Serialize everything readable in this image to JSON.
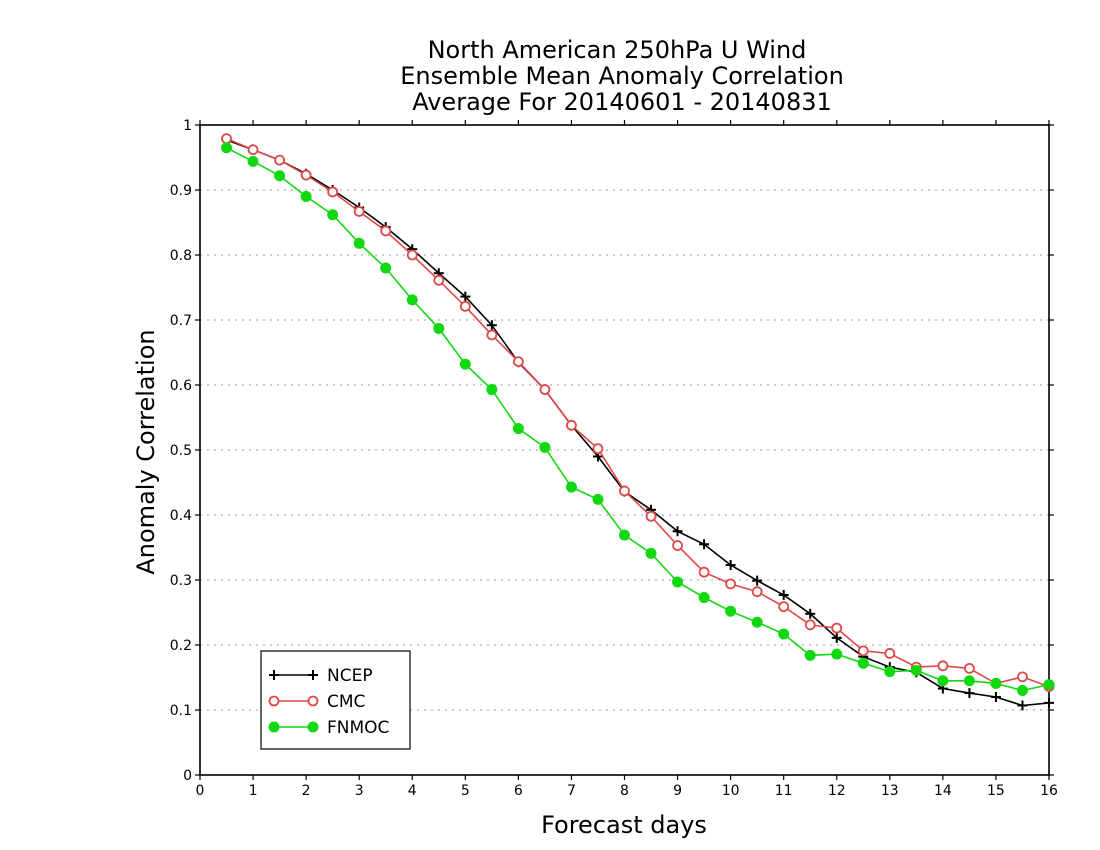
{
  "chart_data": {
    "type": "line",
    "title": [
      "North American 250hPa U Wind",
      "Ensemble Mean Anomaly Correlation",
      "Average For 20140601 - 20140831"
    ],
    "xlabel": "Forecast days",
    "ylabel": "Anomaly Correlation",
    "xlim": [
      0,
      16
    ],
    "ylim": [
      0,
      1
    ],
    "xticks": [
      "0",
      "1",
      "2",
      "3",
      "4",
      "5",
      "6",
      "7",
      "8",
      "9",
      "10",
      "11",
      "12",
      "13",
      "14",
      "15",
      "16"
    ],
    "yticks": [
      "0",
      "0.1",
      "0.2",
      "0.3",
      "0.4",
      "0.5",
      "0.6",
      "0.7",
      "0.8",
      "0.9",
      "1"
    ],
    "grid": "horizontal dotted",
    "legend_position": "bottom-left",
    "x": [
      0.5,
      1,
      1.5,
      2,
      2.5,
      3,
      3.5,
      4,
      4.5,
      5,
      5.5,
      6,
      6.5,
      7,
      7.5,
      8,
      8.5,
      9,
      9.5,
      10,
      10.5,
      11,
      11.5,
      12,
      12.5,
      13,
      13.5,
      14,
      14.5,
      15,
      15.5,
      16
    ],
    "series": [
      {
        "name": "NCEP",
        "color": "#000000",
        "marker": "plus",
        "values": [
          0.977,
          0.962,
          0.946,
          0.925,
          0.9,
          0.873,
          0.843,
          0.809,
          0.772,
          0.736,
          0.692,
          0.635,
          0.593,
          0.538,
          0.49,
          0.436,
          0.408,
          0.375,
          0.355,
          0.323,
          0.299,
          0.277,
          0.248,
          0.211,
          0.182,
          0.166,
          0.158,
          0.133,
          0.126,
          0.12,
          0.107,
          0.111
        ]
      },
      {
        "name": "CMC",
        "color": "#e04848",
        "marker": "open-circle",
        "values": [
          0.979,
          0.962,
          0.946,
          0.923,
          0.897,
          0.867,
          0.837,
          0.8,
          0.761,
          0.721,
          0.677,
          0.636,
          0.593,
          0.538,
          0.502,
          0.437,
          0.398,
          0.353,
          0.312,
          0.294,
          0.282,
          0.259,
          0.231,
          0.226,
          0.191,
          0.187,
          0.166,
          0.168,
          0.164,
          0.141,
          0.151,
          0.136
        ]
      },
      {
        "name": "FNMOC",
        "color": "#12d812",
        "marker": "filled-circle",
        "values": [
          0.965,
          0.944,
          0.922,
          0.89,
          0.862,
          0.818,
          0.78,
          0.731,
          0.687,
          0.632,
          0.593,
          0.533,
          0.504,
          0.443,
          0.424,
          0.369,
          0.341,
          0.297,
          0.273,
          0.252,
          0.235,
          0.217,
          0.184,
          0.186,
          0.172,
          0.159,
          0.161,
          0.145,
          0.145,
          0.141,
          0.13,
          0.139
        ]
      }
    ]
  }
}
